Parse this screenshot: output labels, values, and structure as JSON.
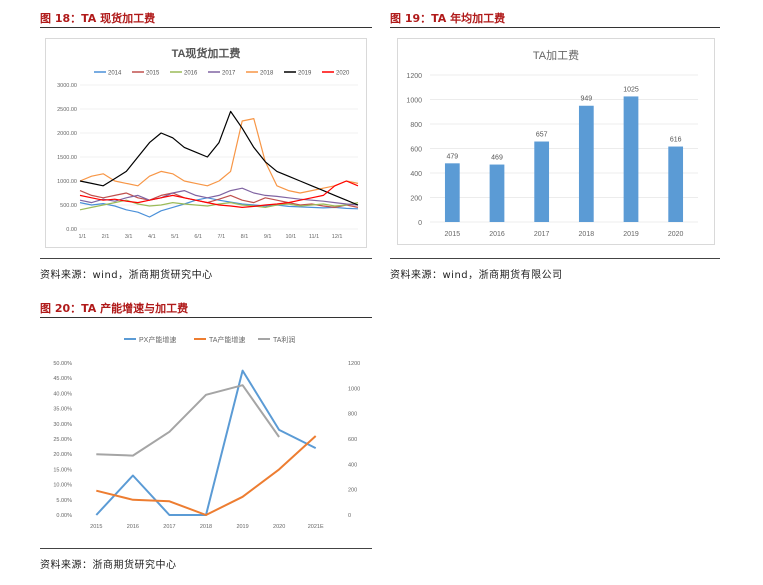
{
  "figures": {
    "fig18": {
      "title": "图 18：TA 现货加工费",
      "source": "资料来源：wind，浙商期货研究中心"
    },
    "fig19": {
      "title": "图 19：TA 年均加工费",
      "source": "资料来源：wind，浙商期货有限公司"
    },
    "fig20": {
      "title": "图 20：TA 产能增速与加工费",
      "source": "资料来源：浙商期货研究中心"
    }
  },
  "chart_data": [
    {
      "type": "line",
      "title": "TA现货加工费",
      "x_ticks": [
        "1/1",
        "2/1",
        "3/1",
        "4/1",
        "5/1",
        "6/1",
        "7/1",
        "8/1",
        "9/1",
        "10/1",
        "11/1",
        "12/1"
      ],
      "y_ticks": [
        "0.00",
        "500.00",
        "1000.00",
        "1500.00",
        "2000.00",
        "2500.00",
        "3000.00"
      ],
      "ylim": [
        0,
        3000
      ],
      "legend_position": "top",
      "series": [
        {
          "name": "2014",
          "color": "#4a90d9",
          "values": [
            550,
            500,
            530,
            480,
            400,
            350,
            250,
            380,
            450,
            520,
            600,
            650,
            600,
            560,
            520,
            500,
            480,
            500,
            470,
            460,
            450,
            440,
            450,
            430,
            420
          ]
        },
        {
          "name": "2015",
          "color": "#c0504d",
          "values": [
            800,
            700,
            650,
            700,
            750,
            650,
            600,
            700,
            750,
            650,
            600,
            550,
            620,
            700,
            600,
            550,
            650,
            600,
            550,
            500,
            520,
            480,
            450,
            500,
            450
          ]
        },
        {
          "name": "2016",
          "color": "#9bbb59",
          "values": [
            400,
            450,
            500,
            550,
            600,
            520,
            480,
            500,
            550,
            520,
            500,
            480,
            520,
            550,
            500,
            480,
            450,
            500,
            520,
            480,
            500,
            520,
            480,
            500,
            550
          ]
        },
        {
          "name": "2017",
          "color": "#8064a2",
          "values": [
            600,
            550,
            620,
            580,
            650,
            700,
            600,
            650,
            750,
            800,
            700,
            650,
            700,
            800,
            850,
            750,
            700,
            680,
            650,
            620,
            600,
            580,
            550,
            520,
            500
          ]
        },
        {
          "name": "2018",
          "color": "#f79646",
          "values": [
            1000,
            1100,
            1150,
            1000,
            950,
            900,
            1100,
            1200,
            1150,
            1000,
            950,
            900,
            1000,
            1200,
            2250,
            2300,
            1400,
            900,
            800,
            750,
            800,
            850,
            900,
            1000,
            950
          ]
        },
        {
          "name": "2019",
          "color": "#000000",
          "values": [
            1000,
            950,
            900,
            1050,
            1200,
            1500,
            1800,
            2000,
            1900,
            1700,
            1600,
            1500,
            1800,
            2450,
            2100,
            1700,
            1400,
            1200,
            1100,
            1000,
            900,
            800,
            700,
            600,
            500
          ]
        },
        {
          "name": "2020",
          "color": "#ff0000",
          "values": [
            700,
            650,
            600,
            620,
            580,
            550,
            600,
            650,
            700,
            650,
            600,
            550,
            500,
            480,
            450,
            470,
            500,
            520,
            550,
            600,
            650,
            700,
            900,
            1000,
            900
          ]
        }
      ]
    },
    {
      "type": "bar",
      "title": "TA加工费",
      "categories": [
        "2015",
        "2016",
        "2017",
        "2018",
        "2019",
        "2020"
      ],
      "values": [
        479,
        469,
        657,
        949,
        1025,
        616
      ],
      "ylim": [
        0,
        1200
      ],
      "y_ticks": [
        "0",
        "200",
        "400",
        "600",
        "800",
        "1000",
        "1200"
      ],
      "color": "#5b9bd5"
    },
    {
      "type": "line",
      "title": "",
      "categories": [
        "2015",
        "2016",
        "2017",
        "2018",
        "2019",
        "2020",
        "2021E"
      ],
      "y_left_ticks": [
        "0.00%",
        "5.00%",
        "10.00%",
        "15.00%",
        "20.00%",
        "25.00%",
        "30.00%",
        "35.00%",
        "40.00%",
        "45.00%",
        "50.00%"
      ],
      "y_right_ticks": [
        "0",
        "200",
        "400",
        "600",
        "800",
        "1000",
        "1200"
      ],
      "ylim_left": [
        0,
        50
      ],
      "ylim_right": [
        0,
        1200
      ],
      "legend_position": "top",
      "series": [
        {
          "name": "PX产能增速",
          "axis": "left",
          "color": "#5b9bd5",
          "values": [
            0,
            13,
            0,
            0,
            47.5,
            28,
            22
          ]
        },
        {
          "name": "TA产能增速",
          "axis": "left",
          "color": "#ed7d31",
          "values": [
            8,
            5,
            4.5,
            0,
            6,
            15,
            26
          ]
        },
        {
          "name": "TA利润",
          "axis": "right",
          "color": "#a5a5a5",
          "values": [
            479,
            469,
            657,
            949,
            1025,
            616,
            null
          ]
        }
      ]
    }
  ]
}
